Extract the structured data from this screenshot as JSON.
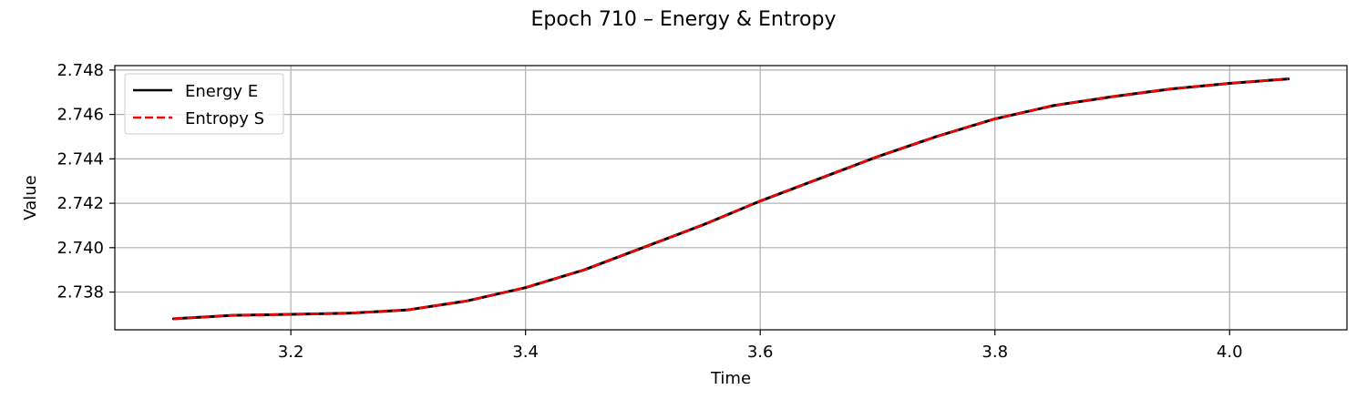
{
  "chart_data": {
    "type": "line",
    "title": "Epoch 710 – Energy & Entropy",
    "xlabel": "Time",
    "ylabel": "Value",
    "xlim": [
      3.05,
      4.1
    ],
    "ylim": [
      2.7363,
      2.7482
    ],
    "x_ticks": [
      3.2,
      3.4,
      3.6,
      3.8,
      4.0
    ],
    "x_tick_labels": [
      "3.2",
      "3.4",
      "3.6",
      "3.8",
      "4.0"
    ],
    "y_ticks": [
      2.738,
      2.74,
      2.742,
      2.744,
      2.746,
      2.748
    ],
    "y_tick_labels": [
      "2.738",
      "2.740",
      "2.742",
      "2.744",
      "2.746",
      "2.748"
    ],
    "grid": true,
    "legend_position": "top-left",
    "x": [
      3.1,
      3.15,
      3.2,
      3.25,
      3.3,
      3.35,
      3.4,
      3.45,
      3.5,
      3.55,
      3.6,
      3.65,
      3.7,
      3.75,
      3.8,
      3.85,
      3.9,
      3.95,
      4.0,
      4.05
    ],
    "series": [
      {
        "name": "Energy E",
        "color": "#000000",
        "style": "solid",
        "values": [
          2.7368,
          2.73695,
          2.737,
          2.73705,
          2.7372,
          2.7376,
          2.7382,
          2.739,
          2.74,
          2.741,
          2.7421,
          2.7431,
          2.7441,
          2.745,
          2.7458,
          2.7464,
          2.7468,
          2.74715,
          2.7474,
          2.7476
        ]
      },
      {
        "name": "Entropy S",
        "color": "#ff0000",
        "style": "dashed",
        "values": [
          2.7368,
          2.73695,
          2.737,
          2.73705,
          2.7372,
          2.7376,
          2.7382,
          2.739,
          2.74,
          2.741,
          2.7421,
          2.7431,
          2.7441,
          2.745,
          2.7458,
          2.7464,
          2.7468,
          2.74715,
          2.7474,
          2.7476
        ]
      }
    ]
  }
}
